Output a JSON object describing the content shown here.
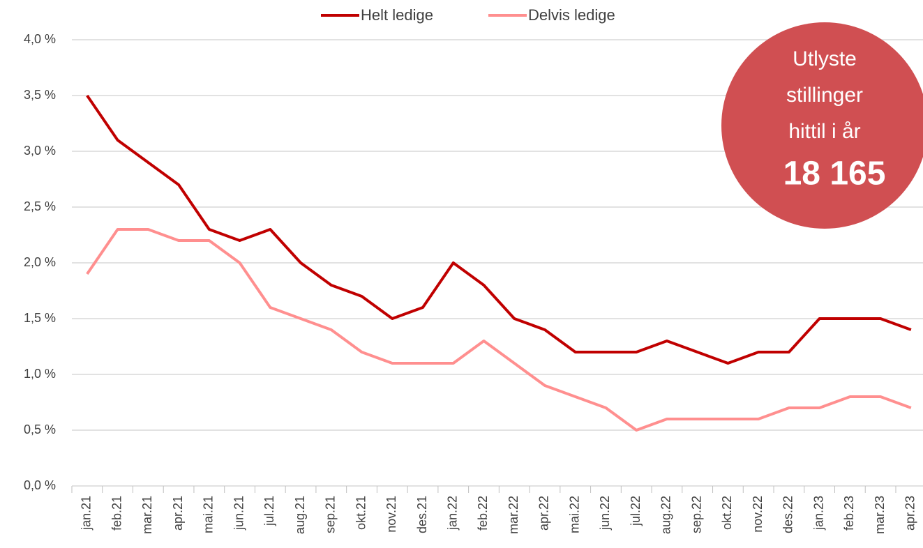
{
  "chart_data": {
    "type": "line",
    "categories": [
      "jan.21",
      "feb.21",
      "mar.21",
      "apr.21",
      "mai.21",
      "jun.21",
      "jul.21",
      "aug.21",
      "sep.21",
      "okt.21",
      "nov.21",
      "des.21",
      "jan.22",
      "feb.22",
      "mar.22",
      "apr.22",
      "mai.22",
      "jun.22",
      "jul.22",
      "aug.22",
      "sep.22",
      "okt.22",
      "nov.22",
      "des.22",
      "jan.23",
      "feb.23",
      "mar.23",
      "apr.23"
    ],
    "series": [
      {
        "name": "Helt ledige",
        "color": "#c00000",
        "values": [
          3.5,
          3.1,
          2.9,
          2.7,
          2.3,
          2.2,
          2.3,
          2.0,
          1.8,
          1.7,
          1.5,
          1.6,
          2.0,
          1.8,
          1.5,
          1.4,
          1.2,
          1.2,
          1.2,
          1.3,
          1.2,
          1.1,
          1.2,
          1.2,
          1.5,
          1.5,
          1.5,
          1.4
        ]
      },
      {
        "name": "Delvis ledige",
        "color": "#ff8f8f",
        "values": [
          1.9,
          2.3,
          2.3,
          2.2,
          2.2,
          2.0,
          1.6,
          1.5,
          1.4,
          1.2,
          1.1,
          1.1,
          1.1,
          1.3,
          1.1,
          0.9,
          0.8,
          0.7,
          0.5,
          0.6,
          0.6,
          0.6,
          0.6,
          0.7,
          0.7,
          0.8,
          0.8,
          0.7
        ]
      }
    ],
    "ylim": [
      0,
      4
    ],
    "yticks": [
      {
        "value": 0,
        "label": "0,0 %"
      },
      {
        "value": 0.5,
        "label": "0,5 %"
      },
      {
        "value": 1,
        "label": "1,0 %"
      },
      {
        "value": 1.5,
        "label": "1,5 %"
      },
      {
        "value": 2,
        "label": "2,0 %"
      },
      {
        "value": 2.5,
        "label": "2,5 %"
      },
      {
        "value": 3,
        "label": "3,0 %"
      },
      {
        "value": 3.5,
        "label": "3,5 %"
      },
      {
        "value": 4,
        "label": "4,0 %"
      }
    ],
    "grid": true,
    "legend": "top",
    "annotation": {
      "lines": [
        "Utlyste",
        "stillinger",
        "hittil i år"
      ],
      "highlight": "18 165",
      "color": "#d04f52"
    }
  }
}
